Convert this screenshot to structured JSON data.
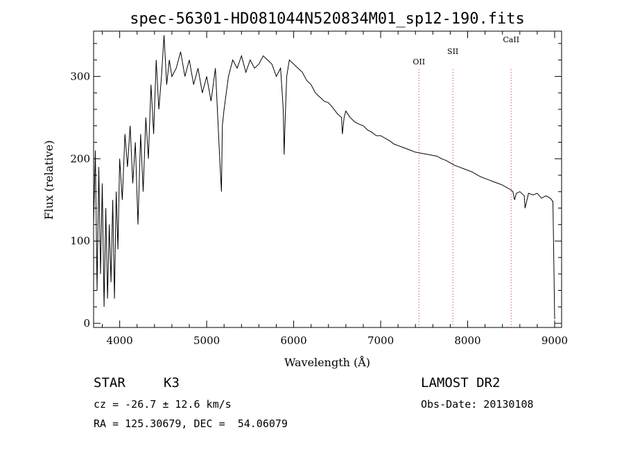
{
  "chart_data": {
    "type": "line",
    "title": "spec-56301-HD081044N520834M01_sp12-190.fits",
    "xlabel": "Wavelength (Å)",
    "ylabel": "Flux (relative)",
    "xlim": [
      3700,
      9080
    ],
    "ylim": [
      -5,
      355
    ],
    "xticks": [
      4000,
      5000,
      6000,
      7000,
      8000,
      9000
    ],
    "yticks": [
      0,
      100,
      200,
      300
    ],
    "grid": false,
    "series": [
      {
        "x": [
          3700,
          3720,
          3740,
          3760,
          3780,
          3800,
          3820,
          3840,
          3860,
          3880,
          3900,
          3920,
          3940,
          3960,
          3980,
          4000,
          4030,
          4060,
          4090,
          4120,
          4150,
          4180,
          4210,
          4240,
          4270,
          4300,
          4330,
          4360,
          4390,
          4420,
          4450,
          4480,
          4510,
          4540,
          4570,
          4600,
          4650,
          4700,
          4750,
          4800,
          4850,
          4900,
          4950,
          5000,
          5050,
          5100,
          5150,
          5170,
          5180,
          5200,
          5250,
          5300,
          5350,
          5400,
          5450,
          5500,
          5550,
          5600,
          5650,
          5700,
          5750,
          5800,
          5850,
          5880,
          5890,
          5900,
          5920,
          5950,
          6000,
          6050,
          6100,
          6150,
          6200,
          6250,
          6300,
          6350,
          6400,
          6450,
          6500,
          6550,
          6560,
          6580,
          6600,
          6650,
          6700,
          6750,
          6800,
          6850,
          6900,
          6950,
          7000,
          7050,
          7100,
          7150,
          7200,
          7250,
          7300,
          7350,
          7400,
          7450,
          7500,
          7550,
          7600,
          7650,
          7700,
          7750,
          7800,
          7850,
          7900,
          7950,
          8000,
          8050,
          8100,
          8150,
          8200,
          8250,
          8300,
          8350,
          8400,
          8450,
          8500,
          8520,
          8540,
          8560,
          8600,
          8650,
          8660,
          8700,
          8750,
          8800,
          8850,
          8900,
          8950,
          8980,
          9000
        ],
        "y": [
          120,
          210,
          40,
          190,
          60,
          170,
          20,
          140,
          30,
          120,
          50,
          150,
          30,
          160,
          90,
          200,
          150,
          230,
          190,
          240,
          170,
          220,
          120,
          230,
          160,
          250,
          200,
          290,
          230,
          320,
          260,
          300,
          350,
          290,
          320,
          300,
          310,
          330,
          300,
          320,
          290,
          310,
          280,
          300,
          270,
          310,
          200,
          160,
          240,
          260,
          300,
          320,
          310,
          325,
          305,
          320,
          310,
          315,
          325,
          320,
          315,
          300,
          310,
          260,
          205,
          240,
          300,
          320,
          315,
          310,
          305,
          295,
          290,
          280,
          275,
          270,
          268,
          262,
          255,
          250,
          230,
          250,
          258,
          250,
          245,
          242,
          240,
          235,
          232,
          228,
          228,
          225,
          222,
          218,
          216,
          214,
          212,
          210,
          208,
          207,
          206,
          205,
          204,
          203,
          200,
          198,
          195,
          192,
          190,
          188,
          186,
          184,
          181,
          178,
          176,
          174,
          172,
          170,
          168,
          165,
          162,
          160,
          150,
          158,
          160,
          155,
          140,
          158,
          156,
          158,
          152,
          155,
          152,
          148,
          5
        ]
      }
    ],
    "annotations": [
      {
        "label": "OII",
        "x": 7440
      },
      {
        "label": "SII",
        "x": 7830
      },
      {
        "label": "CaII",
        "x": 8500
      }
    ]
  },
  "info": {
    "object_type": "STAR",
    "subclass": "K3",
    "survey": "LAMOST DR2",
    "cz": "cz = -26.7 ± 12.6 km/s",
    "obs_date": "Obs-Date: 20130108",
    "coords": "RA = 125.30679, DEC =  54.06079"
  },
  "colors": {
    "spectrum": "#000000",
    "line_markers": "#cc2222",
    "axes": "#000000"
  }
}
